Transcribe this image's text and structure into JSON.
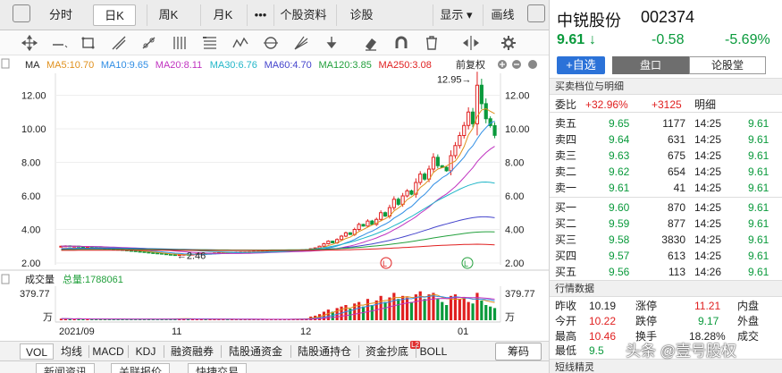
{
  "topnav": {
    "items": [
      "分时",
      "日K",
      "周K",
      "月K",
      "•••",
      "个股资料",
      "诊股"
    ],
    "right_items": [
      "显示 ▾",
      "画线"
    ]
  },
  "chart_header": {
    "ma_label": "MA",
    "ma_items": [
      {
        "text": "MA5:10.70",
        "color": "#e0901c"
      },
      {
        "text": "MA10:9.65",
        "color": "#2f8de4"
      },
      {
        "text": "MA20:8.11",
        "color": "#c033c0"
      },
      {
        "text": "MA30:6.76",
        "color": "#22b6c8"
      },
      {
        "text": "MA60:4.70",
        "color": "#4444cc"
      },
      {
        "text": "MA120:3.85",
        "color": "#22a03c"
      },
      {
        "text": "MA250:3.08",
        "color": "#e02020"
      }
    ],
    "restore": "前复权"
  },
  "volume_header": {
    "label": "成交量",
    "total": "总量:1788061"
  },
  "price_axis": {
    "left_ticks": [
      "12.00",
      "10.00",
      "8.00",
      "6.00",
      "4.00",
      "2.00"
    ],
    "right_ticks": [
      "12.00",
      "10.00",
      "8.00",
      "6.00",
      "4.00",
      "2.00"
    ],
    "vol_left": [
      "379.77",
      "万"
    ],
    "vol_right": [
      "379.77",
      "万"
    ]
  },
  "x_axis": [
    "2021/09",
    "11",
    "12",
    "01"
  ],
  "annotations": {
    "max": "12.95→",
    "min": "←2.46"
  },
  "bottom_tabs": [
    "VOL",
    "均线",
    "MACD",
    "KDJ",
    "融资融券",
    "陆股通资金",
    "陆股通持仓",
    "资金抄底",
    "BOLL"
  ],
  "bottom_badge": "L2",
  "code_button": "筹码",
  "news_tabs": [
    "新闻资讯",
    "关联报价",
    "快捷交易"
  ],
  "quote": {
    "name": "中锐股份",
    "code": "002374",
    "price": "9.61",
    "arrow": "↓",
    "change": "-0.58",
    "change_pct": "-5.69%",
    "fav_button": "+自选",
    "tab_pankou": "盘口",
    "tab_lungu": "论股堂",
    "section_order": "买卖档位与明细",
    "weibi_label": "委比",
    "weibi_pct": "+32.96%",
    "weibi_diff": "+3125",
    "detail_label": "明细",
    "sells": [
      {
        "label": "卖五",
        "price": "9.65",
        "vol": "1177"
      },
      {
        "label": "卖四",
        "price": "9.64",
        "vol": "631"
      },
      {
        "label": "卖三",
        "price": "9.63",
        "vol": "675"
      },
      {
        "label": "卖二",
        "price": "9.62",
        "vol": "654"
      },
      {
        "label": "卖一",
        "price": "9.61",
        "vol": "41"
      }
    ],
    "buys": [
      {
        "label": "买一",
        "price": "9.60",
        "vol": "870"
      },
      {
        "label": "买二",
        "price": "9.59",
        "vol": "877"
      },
      {
        "label": "买三",
        "price": "9.58",
        "vol": "3830"
      },
      {
        "label": "买四",
        "price": "9.57",
        "vol": "613"
      },
      {
        "label": "买五",
        "price": "9.56",
        "vol": "113"
      }
    ],
    "ticks": [
      {
        "time": "14:25",
        "price": "9.61"
      },
      {
        "time": "14:25",
        "price": "9.61"
      },
      {
        "time": "14:25",
        "price": "9.61"
      },
      {
        "time": "14:25",
        "price": "9.61"
      },
      {
        "time": "14:25",
        "price": "9.61"
      },
      {
        "time": "14:25",
        "price": "9.61"
      },
      {
        "time": "14:25",
        "price": "9.61"
      },
      {
        "time": "14:25",
        "price": "9.61"
      },
      {
        "time": "14:25",
        "price": "9.61"
      },
      {
        "time": "14:26",
        "price": "9.61"
      }
    ],
    "section_data": "行情数据",
    "stats": {
      "yesterday_label": "昨收",
      "yesterday": "10.19",
      "limit_up_label": "涨停",
      "limit_up": "11.21",
      "inner_label": "内盘",
      "open_label": "今开",
      "open": "10.22",
      "limit_down_label": "跌停",
      "limit_down": "9.17",
      "outer_label": "外盘",
      "high_label": "最高",
      "high": "10.46",
      "turnover_label": "换手",
      "turnover": "18.28%",
      "amount_label": "成交",
      "low_label": "最低",
      "low": "9.5"
    },
    "section_short": "短线精灵"
  },
  "watermark": "头条 @壹号股权",
  "chart_data": {
    "type": "candlestick",
    "ylim": [
      2.0,
      13.2
    ],
    "closes": [
      3.0,
      3.02,
      2.98,
      3.0,
      2.97,
      2.95,
      2.98,
      2.96,
      2.93,
      2.9,
      2.88,
      2.85,
      2.82,
      2.8,
      2.78,
      2.75,
      2.73,
      2.7,
      2.68,
      2.65,
      2.62,
      2.6,
      2.58,
      2.55,
      2.52,
      2.5,
      2.48,
      2.5,
      2.52,
      2.5,
      2.53,
      2.55,
      2.57,
      2.55,
      2.58,
      2.6,
      2.62,
      2.63,
      2.62,
      2.64,
      2.65,
      2.66,
      2.66,
      2.67,
      2.68,
      2.68,
      2.69,
      2.7,
      2.7,
      2.71,
      2.72,
      2.73,
      2.74,
      2.75,
      2.76,
      2.78,
      2.8,
      2.85,
      2.9,
      3.0,
      3.15,
      3.3,
      3.2,
      3.4,
      3.6,
      3.8,
      3.7,
      4.0,
      4.3,
      4.2,
      4.5,
      4.3,
      4.6,
      5.0,
      4.8,
      5.3,
      5.8,
      5.5,
      6.0,
      6.3,
      6.1,
      6.8,
      7.3,
      7.0,
      7.6,
      8.3,
      7.8,
      7.7,
      7.5,
      8.4,
      9.0,
      9.6,
      10.2,
      11.0,
      10.3,
      12.6,
      11.5,
      10.6,
      10.19,
      9.61
    ],
    "ma": [
      {
        "name": "MA5",
        "color": "#e0901c"
      },
      {
        "name": "MA10",
        "color": "#2f8de4"
      },
      {
        "name": "MA20",
        "color": "#c033c0"
      },
      {
        "name": "MA30",
        "color": "#22b6c8"
      },
      {
        "name": "MA60",
        "color": "#4444cc"
      },
      {
        "name": "MA120",
        "color": "#22a03c"
      },
      {
        "name": "MA250",
        "color": "#e02020"
      }
    ],
    "max_price": 12.95,
    "min_price": 2.46,
    "volume_max_wan": 379.77,
    "volume_fractions": [
      0.05,
      0.05,
      0.04,
      0.04,
      0.05,
      0.04,
      0.04,
      0.03,
      0.04,
      0.04,
      0.04,
      0.03,
      0.04,
      0.03,
      0.04,
      0.03,
      0.03,
      0.04,
      0.03,
      0.03,
      0.04,
      0.03,
      0.03,
      0.04,
      0.04,
      0.05,
      0.06,
      0.05,
      0.05,
      0.04,
      0.04,
      0.04,
      0.03,
      0.04,
      0.03,
      0.04,
      0.03,
      0.03,
      0.03,
      0.03,
      0.03,
      0.03,
      0.03,
      0.03,
      0.03,
      0.03,
      0.03,
      0.03,
      0.03,
      0.03,
      0.03,
      0.03,
      0.03,
      0.04,
      0.04,
      0.05,
      0.06,
      0.12,
      0.15,
      0.2,
      0.28,
      0.35,
      0.28,
      0.4,
      0.45,
      0.5,
      0.38,
      0.55,
      0.6,
      0.45,
      0.7,
      0.5,
      0.65,
      0.8,
      0.6,
      0.75,
      0.9,
      0.7,
      0.8,
      0.75,
      0.6,
      0.85,
      0.95,
      0.7,
      0.85,
      0.9,
      0.7,
      0.6,
      0.5,
      0.8,
      0.85,
      0.7,
      0.75,
      0.6,
      0.55,
      0.9,
      0.65,
      0.5,
      0.45,
      0.4
    ]
  }
}
